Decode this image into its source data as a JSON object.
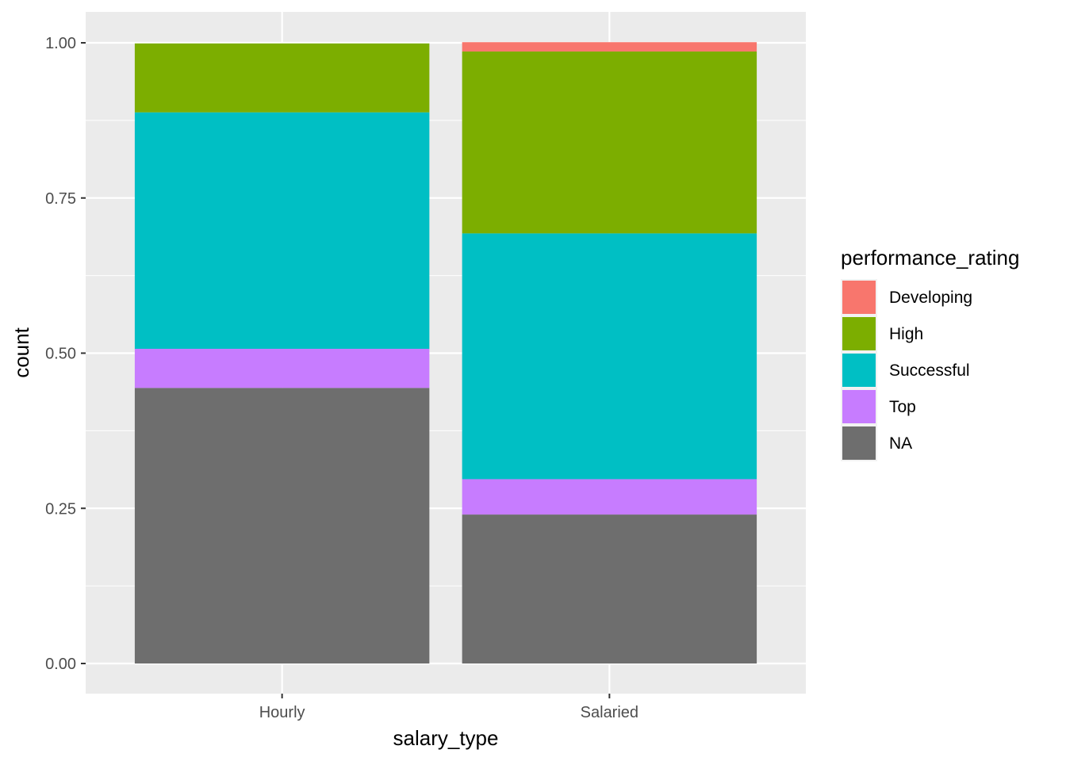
{
  "chart_data": {
    "type": "bar",
    "stacked": true,
    "position": "fill",
    "title": "",
    "xlabel": "salary_type",
    "ylabel": "count",
    "categories": [
      "Hourly",
      "Salaried"
    ],
    "ylim": [
      0,
      1
    ],
    "yticks": [
      "0.00",
      "0.25",
      "0.50",
      "0.75",
      "1.00"
    ],
    "ytick_values": [
      0,
      0.25,
      0.5,
      0.75,
      1.0
    ],
    "grid": true,
    "legend": {
      "title": "performance_rating",
      "placement": "right",
      "entries": [
        "Developing",
        "High",
        "Successful",
        "Top",
        "NA"
      ]
    },
    "series": [
      {
        "name": "Developing",
        "color": "#F8766D",
        "values": [
          0.0,
          0.015
        ]
      },
      {
        "name": "High",
        "color": "#7CAE00",
        "values": [
          0.111,
          0.293
        ]
      },
      {
        "name": "Successful",
        "color": "#00BFC4",
        "values": [
          0.381,
          0.396
        ]
      },
      {
        "name": "Top",
        "color": "#C77CFF",
        "values": [
          0.063,
          0.057
        ]
      },
      {
        "name": "NA",
        "color": "#6E6E6E",
        "values": [
          0.444,
          0.24
        ]
      }
    ],
    "stack_order_bottom_to_top": [
      "NA",
      "Top",
      "Successful",
      "High",
      "Developing"
    ]
  }
}
